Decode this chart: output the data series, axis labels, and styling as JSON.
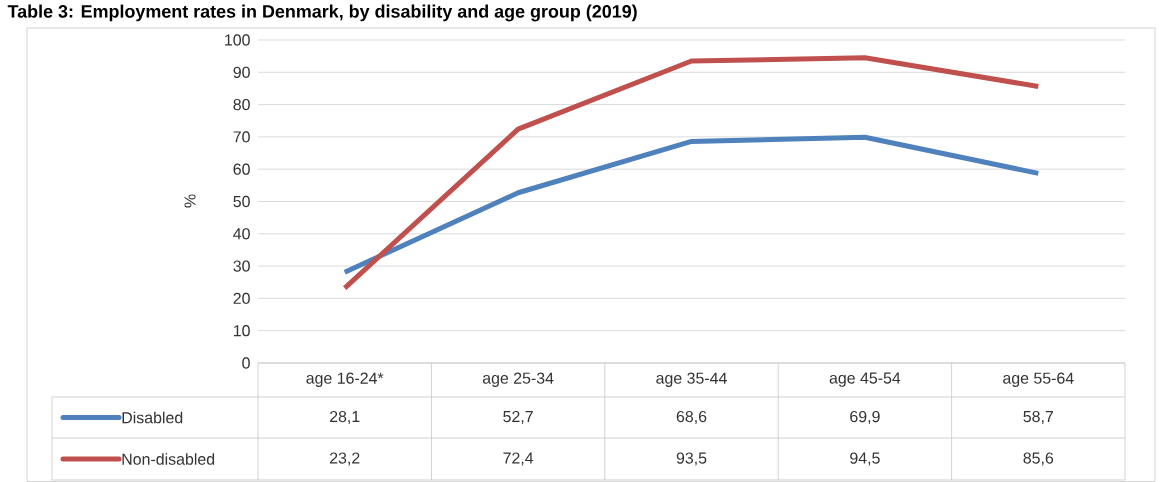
{
  "chart_data": {
    "type": "line",
    "title": "Table 3: Employment rates in Denmark, by disability and age group (2019)",
    "ylabel": "%",
    "categories": [
      "age 16-24*",
      "age 25-34",
      "age 35-44",
      "age 45-54",
      "age 55-64"
    ],
    "series": [
      {
        "name": "Disabled",
        "color": "#4f81bd",
        "values": [
          28.1,
          52.7,
          68.6,
          69.9,
          58.7
        ],
        "value_labels": [
          "28,1",
          "52,7",
          "68,6",
          "69,9",
          "58,7"
        ]
      },
      {
        "name": "Non-disabled",
        "color": "#c0504d",
        "values": [
          23.2,
          72.4,
          93.5,
          94.5,
          85.6
        ],
        "value_labels": [
          "23,2",
          "72,4",
          "93,5",
          "94,5",
          "85,6"
        ]
      }
    ],
    "ylim": [
      0,
      100
    ],
    "yticks": [
      0,
      10,
      20,
      30,
      40,
      50,
      60,
      70,
      80,
      90,
      100
    ],
    "grid": "y",
    "legend": "bottom"
  }
}
